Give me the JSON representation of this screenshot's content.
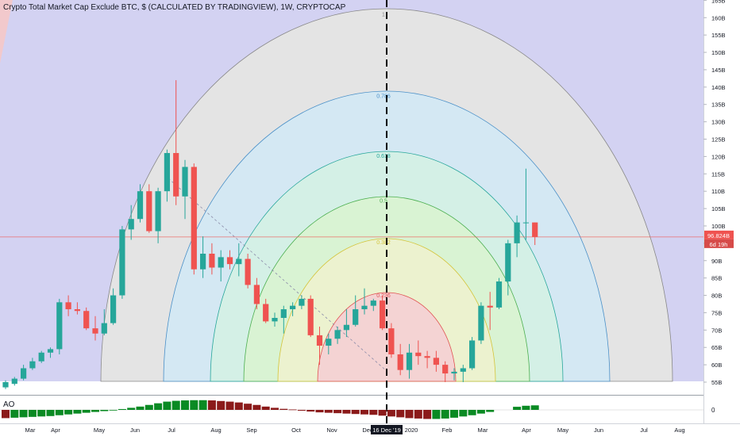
{
  "header": {
    "symbol_title": "Crypto Total Market Cap Exclude BTC, $ (CALCULATED BY TRADINGVIEW), 1W, CRYPTOCAP"
  },
  "indicator": {
    "label": "AO",
    "zero_label": "0"
  },
  "colors": {
    "background_fill": "#d3d2f2",
    "up_candle": "#26a69a",
    "down_candle": "#ef5350",
    "price_line": "#ef5350",
    "ao_up": "#0a8a23",
    "ao_down": "#8b1a1a",
    "crosshair": "#000000"
  },
  "chart_data": {
    "type": "candlestick",
    "title": "Crypto Total Market Cap Exclude BTC, $ (CALCULATED BY TRADINGVIEW), 1W, CRYPTOCAP",
    "interval": "1W",
    "y_axis": {
      "unit": "B",
      "range": [
        55,
        166
      ],
      "tick_labels": [
        "55B",
        "60B",
        "65B",
        "70B",
        "75B",
        "80B",
        "85B",
        "90B",
        "95B",
        "100B",
        "105B",
        "110B",
        "115B",
        "120B",
        "125B",
        "130B",
        "135B",
        "140B",
        "145B",
        "150B",
        "155B",
        "160B",
        "165B"
      ],
      "tick_values": [
        55,
        60,
        65,
        70,
        75,
        80,
        85,
        90,
        95,
        100,
        105,
        110,
        115,
        120,
        125,
        130,
        135,
        140,
        145,
        150,
        155,
        160,
        165
      ]
    },
    "x_axis": {
      "tick_labels": [
        "Mar",
        "Apr",
        "May",
        "Jun",
        "Jul",
        "Aug",
        "Sep",
        "Oct",
        "Nov",
        "Dec",
        "2020",
        "Feb",
        "Mar",
        "Apr",
        "May",
        "Jun",
        "Jul",
        "Aug"
      ]
    },
    "current_price": {
      "label": "96.824B",
      "value": 96.824,
      "countdown": "6d 19h"
    },
    "crosshair": {
      "date_label": "16 Dec '19"
    },
    "fib_arcs": [
      {
        "level": "0.236",
        "color": "#e05252"
      },
      {
        "level": "0.382",
        "color": "#d4c43a"
      },
      {
        "level": "0.5",
        "color": "#4caf50"
      },
      {
        "level": "0.618",
        "color": "#26a69a"
      },
      {
        "level": "0.786",
        "color": "#4a90c8"
      },
      {
        "level": "1",
        "color": "#888888"
      }
    ],
    "candles": [
      {
        "o": 53.5,
        "h": 55.5,
        "l": 53.0,
        "c": 55.0
      },
      {
        "o": 54.5,
        "h": 56.5,
        "l": 54.0,
        "c": 56.0
      },
      {
        "o": 56.0,
        "h": 60.0,
        "l": 55.5,
        "c": 59.0
      },
      {
        "o": 59.0,
        "h": 62.0,
        "l": 58.5,
        "c": 61.0
      },
      {
        "o": 61.0,
        "h": 64.0,
        "l": 60.5,
        "c": 63.5
      },
      {
        "o": 63.5,
        "h": 65.0,
        "l": 62.0,
        "c": 64.5
      },
      {
        "o": 64.5,
        "h": 79.0,
        "l": 63.0,
        "c": 78.0
      },
      {
        "o": 78.0,
        "h": 80.0,
        "l": 74.0,
        "c": 76.0
      },
      {
        "o": 76.0,
        "h": 78.0,
        "l": 74.5,
        "c": 75.5
      },
      {
        "o": 75.5,
        "h": 76.5,
        "l": 70.0,
        "c": 70.5
      },
      {
        "o": 70.5,
        "h": 74.0,
        "l": 67.0,
        "c": 69.0
      },
      {
        "o": 69.0,
        "h": 76.0,
        "l": 68.5,
        "c": 72.0
      },
      {
        "o": 72.0,
        "h": 82.0,
        "l": 71.5,
        "c": 80.0
      },
      {
        "o": 80.0,
        "h": 100.0,
        "l": 79.0,
        "c": 99.0
      },
      {
        "o": 99.0,
        "h": 106.0,
        "l": 96.0,
        "c": 102.0
      },
      {
        "o": 102.0,
        "h": 112.0,
        "l": 101.0,
        "c": 110.0
      },
      {
        "o": 110.0,
        "h": 112.0,
        "l": 98.0,
        "c": 98.5
      },
      {
        "o": 98.5,
        "h": 111.0,
        "l": 95.0,
        "c": 110.0
      },
      {
        "o": 110.0,
        "h": 122.0,
        "l": 107.0,
        "c": 121.0
      },
      {
        "o": 121.0,
        "h": 142.0,
        "l": 106.0,
        "c": 108.5
      },
      {
        "o": 108.5,
        "h": 119.0,
        "l": 102.0,
        "c": 117.0
      },
      {
        "o": 117.0,
        "h": 118.0,
        "l": 86.0,
        "c": 87.5
      },
      {
        "o": 87.5,
        "h": 97.0,
        "l": 85.0,
        "c": 92.0
      },
      {
        "o": 92.0,
        "h": 95.0,
        "l": 86.0,
        "c": 88.0
      },
      {
        "o": 88.0,
        "h": 93.0,
        "l": 84.0,
        "c": 91.0
      },
      {
        "o": 91.0,
        "h": 93.0,
        "l": 87.5,
        "c": 89.0
      },
      {
        "o": 89.0,
        "h": 95.0,
        "l": 85.5,
        "c": 90.5
      },
      {
        "o": 90.5,
        "h": 92.0,
        "l": 82.0,
        "c": 83.0
      },
      {
        "o": 83.0,
        "h": 85.0,
        "l": 76.0,
        "c": 77.5
      },
      {
        "o": 77.5,
        "h": 79.0,
        "l": 72.0,
        "c": 72.5
      },
      {
        "o": 72.5,
        "h": 75.0,
        "l": 71.0,
        "c": 73.5
      },
      {
        "o": 73.5,
        "h": 77.0,
        "l": 69.0,
        "c": 76.0
      },
      {
        "o": 76.0,
        "h": 78.0,
        "l": 74.0,
        "c": 77.0
      },
      {
        "o": 77.0,
        "h": 80.0,
        "l": 76.0,
        "c": 79.0
      },
      {
        "o": 79.0,
        "h": 80.0,
        "l": 68.0,
        "c": 68.5
      },
      {
        "o": 68.5,
        "h": 71.0,
        "l": 60.0,
        "c": 65.5
      },
      {
        "o": 65.5,
        "h": 69.0,
        "l": 63.0,
        "c": 67.5
      },
      {
        "o": 67.5,
        "h": 71.0,
        "l": 66.0,
        "c": 70.0
      },
      {
        "o": 70.0,
        "h": 76.0,
        "l": 68.0,
        "c": 71.5
      },
      {
        "o": 71.5,
        "h": 80.0,
        "l": 71.0,
        "c": 76.0
      },
      {
        "o": 76.0,
        "h": 82.0,
        "l": 74.5,
        "c": 77.0
      },
      {
        "o": 77.0,
        "h": 79.0,
        "l": 75.5,
        "c": 78.5
      },
      {
        "o": 78.5,
        "h": 80.0,
        "l": 70.0,
        "c": 70.5
      },
      {
        "o": 70.5,
        "h": 72.0,
        "l": 62.0,
        "c": 63.0
      },
      {
        "o": 63.0,
        "h": 66.0,
        "l": 57.0,
        "c": 58.5
      },
      {
        "o": 58.5,
        "h": 66.0,
        "l": 56.0,
        "c": 63.5
      },
      {
        "o": 63.5,
        "h": 67.0,
        "l": 60.0,
        "c": 62.5
      },
      {
        "o": 62.5,
        "h": 64.0,
        "l": 59.0,
        "c": 62.0
      },
      {
        "o": 62.0,
        "h": 64.0,
        "l": 58.0,
        "c": 60.0
      },
      {
        "o": 60.0,
        "h": 61.0,
        "l": 55.0,
        "c": 57.5
      },
      {
        "o": 57.5,
        "h": 59.0,
        "l": 55.5,
        "c": 58.0
      },
      {
        "o": 58.0,
        "h": 60.0,
        "l": 55.0,
        "c": 59.0
      },
      {
        "o": 59.0,
        "h": 68.0,
        "l": 58.5,
        "c": 67.0
      },
      {
        "o": 67.0,
        "h": 78.0,
        "l": 66.0,
        "c": 77.0
      },
      {
        "o": 77.0,
        "h": 81.0,
        "l": 70.0,
        "c": 76.5
      },
      {
        "o": 76.5,
        "h": 85.0,
        "l": 76.0,
        "c": 84.0
      },
      {
        "o": 84.0,
        "h": 96.0,
        "l": 80.0,
        "c": 95.0
      },
      {
        "o": 95.0,
        "h": 103.0,
        "l": 91.0,
        "c": 101.0
      },
      {
        "o": 101.0,
        "h": 116.5,
        "l": 96.0,
        "c": 101.0
      },
      {
        "o": 101.0,
        "h": 101.0,
        "l": 94.5,
        "c": 96.824
      }
    ],
    "ao_values": [
      -4.0,
      -3.8,
      -3.6,
      -3.4,
      -3.2,
      -3.0,
      -2.6,
      -2.2,
      -1.8,
      -1.4,
      -1.0,
      -0.6,
      -0.2,
      0.4,
      1.0,
      1.6,
      2.4,
      3.2,
      4.0,
      4.4,
      4.6,
      4.7,
      4.7,
      4.6,
      4.3,
      4.0,
      3.6,
      3.0,
      2.4,
      1.6,
      1.0,
      0.5,
      0.2,
      -0.4,
      -0.8,
      -1.2,
      -1.4,
      -1.6,
      -1.8,
      -2.0,
      -2.2,
      -2.4,
      -2.8,
      -3.2,
      -3.6,
      -4.0,
      -4.2,
      -4.4,
      -4.4,
      -4.2,
      -3.8,
      -3.2,
      -2.6,
      -1.8,
      -1.0,
      null,
      null,
      1.5,
      2.0,
      2.2
    ]
  }
}
